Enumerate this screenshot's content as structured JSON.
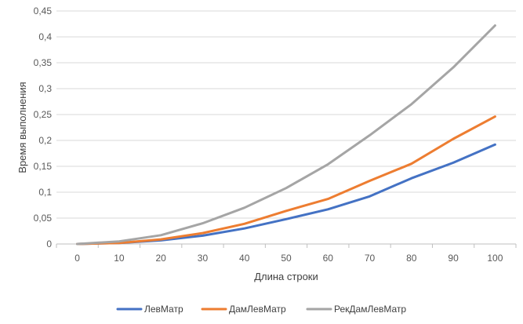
{
  "chart_data": {
    "type": "line",
    "title": "",
    "xlabel": "Длина строки",
    "ylabel": "Время выполнения",
    "x": [
      0,
      10,
      20,
      30,
      40,
      50,
      60,
      70,
      80,
      90,
      100
    ],
    "x_tick_labels": [
      "0",
      "10",
      "20",
      "30",
      "40",
      "50",
      "60",
      "70",
      "80",
      "90",
      "100"
    ],
    "ylim": [
      0,
      0.45
    ],
    "y_ticks": [
      0,
      0.05,
      0.1,
      0.15,
      0.2,
      0.25,
      0.3,
      0.35,
      0.4,
      0.45
    ],
    "y_tick_labels": [
      "0",
      "0,05",
      "0,1",
      "0,15",
      "0,2",
      "0,25",
      "0,3",
      "0,35",
      "0,4",
      "0,45"
    ],
    "grid": "horizontal",
    "legend_position": "bottom",
    "series": [
      {
        "name": "ЛевМатр",
        "color": "#4472C4",
        "values": [
          0,
          0.002,
          0.007,
          0.016,
          0.03,
          0.048,
          0.067,
          0.092,
          0.127,
          0.157,
          0.192
        ]
      },
      {
        "name": "ДамЛевМатр",
        "color": "#ED7D31",
        "values": [
          0,
          0.002,
          0.009,
          0.021,
          0.039,
          0.064,
          0.087,
          0.122,
          0.155,
          0.203,
          0.246
        ]
      },
      {
        "name": "РекДамЛевМатр",
        "color": "#A5A5A5",
        "values": [
          0,
          0.005,
          0.017,
          0.04,
          0.07,
          0.108,
          0.154,
          0.21,
          0.27,
          0.341,
          0.422
        ]
      }
    ]
  }
}
